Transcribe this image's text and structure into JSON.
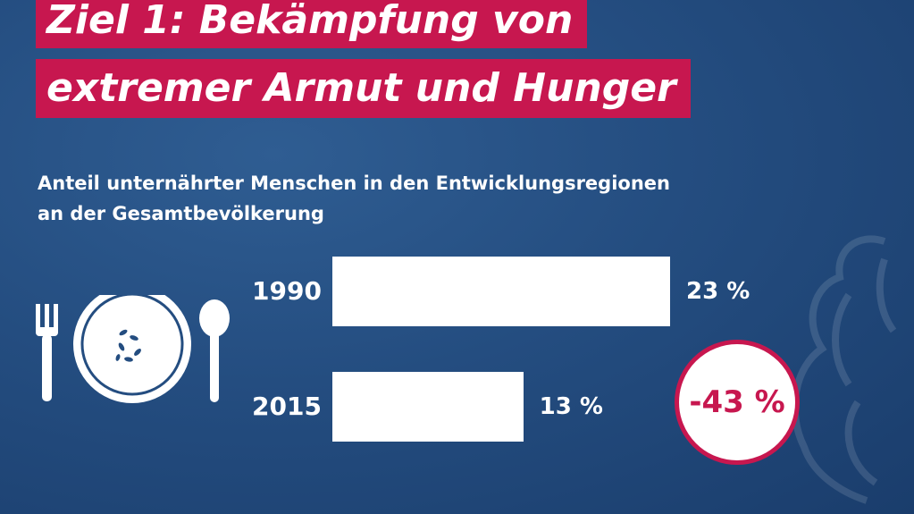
{
  "title": {
    "line1": "Ziel 1: Bekämpfung von",
    "line2": "extremer Armut und Hunger"
  },
  "subtitle": {
    "line1": "Anteil unternährter Menschen in den Entwicklungsregionen",
    "line2": "an der Gesamtbevölkerung"
  },
  "colors": {
    "accent": "#c7174f",
    "background": "#244d80",
    "bar": "#ffffff"
  },
  "icons": [
    "fork-icon",
    "plate-icon",
    "spoon-icon",
    "eagle-watermark-icon"
  ],
  "chart_data": {
    "type": "bar",
    "orientation": "horizontal",
    "categories": [
      "1990",
      "2015"
    ],
    "values": [
      23,
      13
    ],
    "value_labels": [
      "23 %",
      "13 %"
    ],
    "unit": "%",
    "change_label": "-43 %"
  }
}
